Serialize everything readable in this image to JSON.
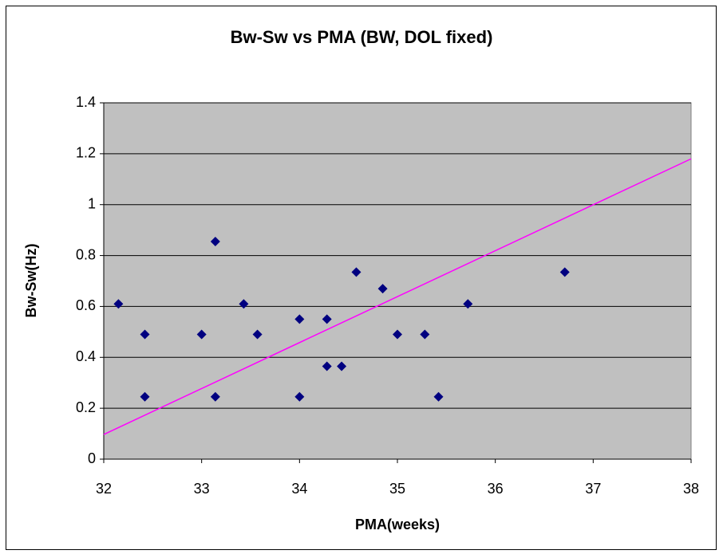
{
  "chart_data": {
    "type": "scatter",
    "title": "Bw-Sw vs PMA (BW, DOL fixed)",
    "xlabel": "PMA(weeks)",
    "ylabel": "Bw-Sw(Hz)",
    "series": [
      {
        "name": "Bw-Sw",
        "color": "#000080",
        "x": [
          32.15,
          32.42,
          32.42,
          33.0,
          33.14,
          33.14,
          33.43,
          33.57,
          34.0,
          34.0,
          34.28,
          34.28,
          34.43,
          34.58,
          34.85,
          35.0,
          35.28,
          35.42,
          35.72,
          36.71
        ],
        "values": [
          0.61,
          0.49,
          0.245,
          0.49,
          0.855,
          0.245,
          0.61,
          0.49,
          0.55,
          0.245,
          0.55,
          0.365,
          0.365,
          0.735,
          0.67,
          0.49,
          0.49,
          0.245,
          0.61,
          0.735
        ]
      }
    ],
    "trendline": {
      "color": "#ff00ff",
      "x": [
        32,
        38
      ],
      "values": [
        0.097,
        1.18
      ]
    },
    "xlim": [
      32,
      38
    ],
    "xticks": [
      32,
      33,
      34,
      35,
      36,
      37,
      38
    ],
    "ylim": [
      0,
      1.4
    ],
    "yticks": [
      0,
      0.2,
      0.4,
      0.6,
      0.8,
      1,
      1.2,
      1.4
    ],
    "grid": true,
    "plot_background": "#c0c0c0"
  }
}
